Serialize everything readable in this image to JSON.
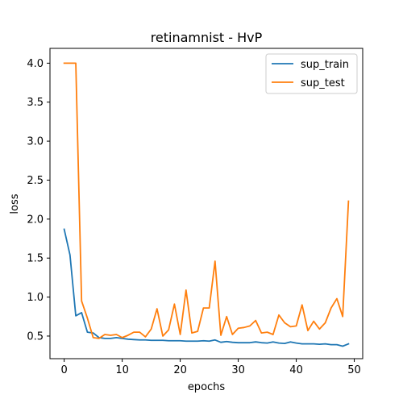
{
  "chart_data": {
    "type": "line",
    "title": "retinamnist - HvP",
    "xlabel": "epochs",
    "ylabel": "loss",
    "xlim": [
      -2.45,
      51.45
    ],
    "ylim": [
      0.21,
      4.19
    ],
    "xticks": [
      0,
      10,
      20,
      30,
      40,
      50
    ],
    "yticks": [
      0.5,
      1.0,
      1.5,
      2.0,
      2.5,
      3.0,
      3.5,
      4.0
    ],
    "ytick_labels": [
      "0.5",
      "1.0",
      "1.5",
      "2.0",
      "2.5",
      "3.0",
      "3.5",
      "4.0"
    ],
    "legend_position": "top-right",
    "grid": false,
    "x": [
      0,
      1,
      2,
      3,
      4,
      5,
      6,
      7,
      8,
      9,
      10,
      11,
      12,
      13,
      14,
      15,
      16,
      17,
      18,
      19,
      20,
      21,
      22,
      23,
      24,
      25,
      26,
      27,
      28,
      29,
      30,
      31,
      32,
      33,
      34,
      35,
      36,
      37,
      38,
      39,
      40,
      41,
      42,
      43,
      44,
      45,
      46,
      47,
      48,
      49
    ],
    "series": [
      {
        "name": "sup_train",
        "color": "#1f77b4",
        "values": [
          1.87,
          1.54,
          0.76,
          0.8,
          0.55,
          0.54,
          0.48,
          0.47,
          0.47,
          0.48,
          0.47,
          0.46,
          0.455,
          0.45,
          0.45,
          0.445,
          0.445,
          0.445,
          0.44,
          0.44,
          0.44,
          0.435,
          0.435,
          0.435,
          0.44,
          0.435,
          0.45,
          0.42,
          0.43,
          0.42,
          0.415,
          0.415,
          0.415,
          0.425,
          0.415,
          0.41,
          0.425,
          0.41,
          0.405,
          0.425,
          0.41,
          0.4,
          0.4,
          0.4,
          0.395,
          0.4,
          0.39,
          0.39,
          0.37,
          0.4
        ]
      },
      {
        "name": "sup_test",
        "color": "#ff7f0e",
        "values": [
          4.0,
          4.0,
          4.0,
          0.95,
          0.73,
          0.48,
          0.47,
          0.52,
          0.51,
          0.52,
          0.48,
          0.51,
          0.55,
          0.55,
          0.49,
          0.59,
          0.85,
          0.5,
          0.58,
          0.91,
          0.52,
          1.09,
          0.54,
          0.56,
          0.86,
          0.86,
          1.46,
          0.51,
          0.75,
          0.52,
          0.6,
          0.61,
          0.63,
          0.7,
          0.54,
          0.55,
          0.52,
          0.77,
          0.67,
          0.62,
          0.63,
          0.9,
          0.57,
          0.69,
          0.59,
          0.67,
          0.86,
          0.98,
          0.75,
          2.23
        ]
      }
    ]
  }
}
